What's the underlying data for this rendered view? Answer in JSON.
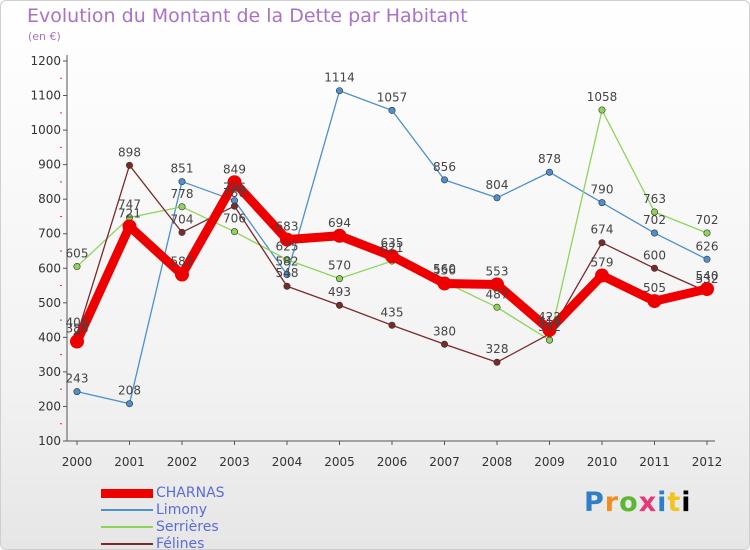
{
  "header": {
    "title": "Evolution du Montant de la Dette par Habitant",
    "subtitle": "(en €)"
  },
  "logo": {
    "text": "Proxiti"
  },
  "chart_data": {
    "type": "line",
    "title": "Evolution du Montant de la Dette par Habitant",
    "subtitle": "(en €)",
    "xlabel": "",
    "ylabel": "",
    "x": [
      "2000",
      "2001",
      "2002",
      "2003",
      "2004",
      "2005",
      "2006",
      "2007",
      "2008",
      "2009",
      "2010",
      "2011",
      "2012"
    ],
    "ylim": [
      100,
      1200
    ],
    "yticks": [
      100,
      200,
      300,
      400,
      500,
      600,
      700,
      800,
      900,
      1000,
      1100,
      1200
    ],
    "grid": false,
    "legend": "bottom-left",
    "series": [
      {
        "name": "Limony",
        "color": "#4d8fcf",
        "values": [
          243,
          208,
          851,
          796,
          582,
          1114,
          1057,
          856,
          804,
          878,
          790,
          702,
          626
        ]
      },
      {
        "name": "Serrières",
        "color": "#8fd45a",
        "values": [
          605,
          747,
          778,
          706,
          625,
          570,
          621,
          560,
          487,
          392,
          1058,
          763,
          702
        ]
      },
      {
        "name": "Félines",
        "color": "#7b2a2a",
        "values": [
          406,
          898,
          704,
          780,
          548,
          493,
          435,
          380,
          328,
          410,
          674,
          600,
          532
        ]
      },
      {
        "name": "CHARNAS",
        "color": "#ee0000",
        "values": [
          388,
          721,
          582,
          849,
          683,
          694,
          635,
          556,
          553,
          422,
          579,
          505,
          540
        ]
      }
    ]
  }
}
